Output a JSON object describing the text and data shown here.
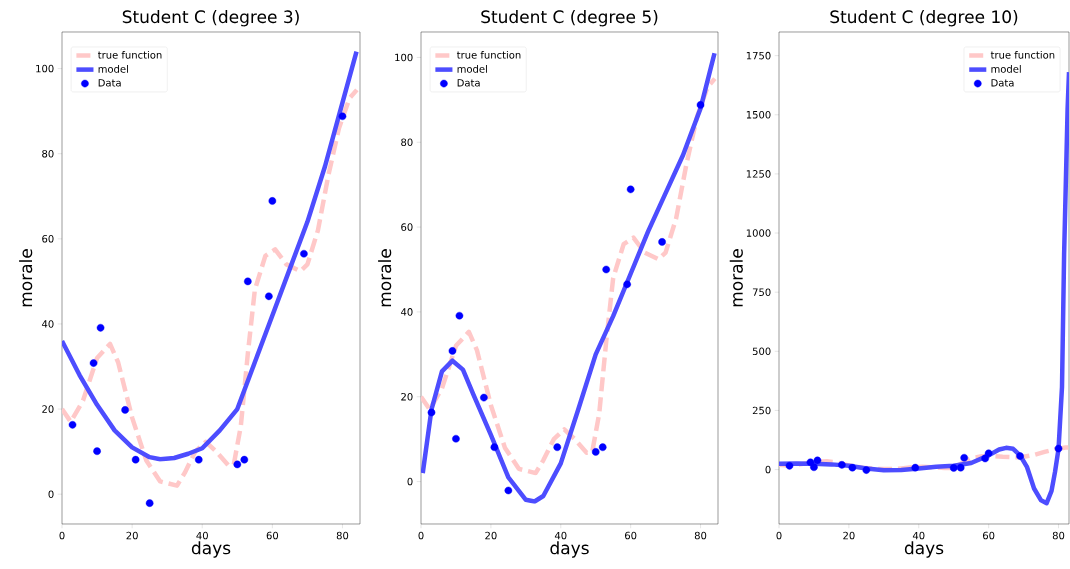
{
  "chart_data": [
    {
      "type": "line",
      "title": "Student C (degree 3)",
      "xlabel": "days",
      "ylabel": "morale",
      "xlim": [
        0,
        85
      ],
      "ylim": [
        -7,
        108.6
      ],
      "xticks": [
        0,
        20,
        40,
        60,
        80
      ],
      "yticks": [
        0,
        20,
        40,
        60,
        80,
        100
      ],
      "legend": "top left",
      "series": [
        {
          "name": "true function",
          "color": "#ffc8c8",
          "line_style": "dashed",
          "x": [
            0,
            2.5,
            6,
            10,
            13.7,
            16,
            20,
            24,
            28,
            32.8,
            35,
            38,
            41,
            44,
            47.4,
            49,
            51,
            53,
            55,
            58,
            60.8,
            64,
            68,
            70,
            73,
            76,
            79,
            82,
            84.1
          ],
          "values": [
            20,
            17,
            22,
            32,
            35.3,
            31,
            18,
            8,
            3,
            2,
            5,
            10,
            12.3,
            10,
            6.8,
            7,
            16,
            33,
            48,
            56,
            57.5,
            54,
            52.4,
            54,
            62,
            75,
            86,
            93,
            95
          ]
        },
        {
          "name": "model",
          "color": "#4d4dff",
          "line_style": "solid",
          "x": [
            0,
            5,
            10,
            15,
            20,
            25,
            28,
            32,
            36,
            40,
            45,
            50,
            55,
            60,
            65,
            70,
            75,
            80,
            84
          ],
          "values": [
            36,
            28,
            21,
            15,
            11,
            8.7,
            8.2,
            8.5,
            9.5,
            10.8,
            15,
            20,
            31,
            42,
            53,
            64,
            77,
            92,
            104
          ]
        },
        {
          "name": "Data",
          "type": "scatter",
          "color": "#0000ff",
          "marker": "circle",
          "x": [
            3,
            9,
            10,
            11,
            18,
            21,
            25,
            39,
            50,
            52,
            53,
            59,
            60,
            69,
            80
          ],
          "values": [
            16.3,
            30.8,
            10.1,
            39.1,
            19.8,
            8.1,
            -2.1,
            8.1,
            7.0,
            8.1,
            50.0,
            46.5,
            68.9,
            56.5,
            88.8
          ]
        }
      ]
    },
    {
      "type": "line",
      "title": "Student C (degree 5)",
      "xlabel": "days",
      "ylabel": "morale",
      "xlim": [
        0,
        85
      ],
      "ylim": [
        -10,
        106
      ],
      "xticks": [
        0,
        20,
        40,
        60,
        80
      ],
      "yticks": [
        0,
        20,
        40,
        60,
        80,
        100
      ],
      "legend": "top left",
      "series": [
        {
          "name": "true function",
          "color": "#ffc8c8",
          "line_style": "dashed",
          "x": [
            0,
            2.5,
            6,
            10,
            13.7,
            16,
            20,
            24,
            28,
            32.8,
            35,
            38,
            41,
            44,
            47.4,
            49,
            51,
            53,
            55,
            58,
            60.8,
            64,
            68,
            70,
            73,
            76,
            79,
            82,
            84.1
          ],
          "values": [
            20,
            17,
            22,
            32,
            35.3,
            31,
            18,
            8,
            3,
            2,
            5,
            10,
            12.3,
            10,
            6.8,
            7,
            16,
            33,
            48,
            56,
            57.5,
            54,
            52.4,
            54,
            62,
            75,
            86,
            93,
            95
          ]
        },
        {
          "name": "model",
          "color": "#4d4dff",
          "line_style": "solid",
          "x": [
            0.5,
            3,
            6,
            9,
            12,
            15,
            20,
            25,
            30,
            32.5,
            35,
            40,
            45,
            50,
            55,
            60,
            65,
            70,
            75,
            80,
            84
          ],
          "values": [
            2,
            17,
            26,
            28.5,
            26.4,
            20.5,
            11,
            1,
            -4.3,
            -4.7,
            -3.4,
            4.3,
            17,
            30,
            39,
            49,
            59,
            68,
            77,
            88,
            101
          ]
        },
        {
          "name": "Data",
          "type": "scatter",
          "color": "#0000ff",
          "marker": "circle",
          "x": [
            3,
            9,
            10,
            11,
            18,
            21,
            25,
            39,
            50,
            52,
            53,
            59,
            60,
            69,
            80
          ],
          "values": [
            16.3,
            30.8,
            10.1,
            39.1,
            19.8,
            8.1,
            -2.1,
            8.1,
            7.0,
            8.1,
            50.0,
            46.5,
            68.9,
            56.5,
            88.8
          ]
        }
      ]
    },
    {
      "type": "line",
      "title": "Student C (degree 10)",
      "xlabel": "days",
      "ylabel": "morale",
      "xlim": [
        0,
        83
      ],
      "ylim": [
        -230,
        1850
      ],
      "xticks": [
        0,
        20,
        40,
        60,
        80
      ],
      "yticks": [
        0,
        250,
        500,
        750,
        1000,
        1250,
        1500,
        1750
      ],
      "legend": "top right",
      "series": [
        {
          "name": "true function",
          "color": "#ffc8c8",
          "line_style": "dashed",
          "x": [
            0,
            2.5,
            6,
            10,
            13.7,
            16,
            20,
            24,
            28,
            32.8,
            35,
            38,
            41,
            44,
            47.4,
            49,
            51,
            53,
            55,
            58,
            60.8,
            64,
            68,
            70,
            73,
            76,
            79,
            82,
            83
          ],
          "values": [
            20,
            17,
            22,
            32,
            35,
            31,
            18,
            8,
            3,
            2,
            5,
            10,
            12,
            10,
            7,
            7,
            16,
            33,
            48,
            56,
            58,
            54,
            52,
            54,
            62,
            75,
            86,
            93,
            94
          ]
        },
        {
          "name": "model",
          "color": "#4d4dff",
          "line_style": "solid",
          "x": [
            0,
            5,
            10,
            15,
            20,
            25,
            30,
            35,
            40,
            45,
            50,
            55,
            60,
            63,
            65,
            67,
            69,
            71,
            73,
            75,
            76.6,
            78,
            79,
            80,
            81,
            81.6,
            82.6,
            83
          ],
          "values": [
            25,
            26,
            25,
            22,
            16,
            5,
            -3,
            -2,
            5,
            12,
            16,
            28,
            60,
            85,
            92,
            88,
            60,
            10,
            -80,
            -130,
            -142,
            -90,
            -10,
            87,
            350,
            910,
            1525,
            1680
          ]
        },
        {
          "name": "Data",
          "type": "scatter",
          "color": "#0000ff",
          "marker": "circle",
          "x": [
            3,
            9,
            10,
            11,
            18,
            21,
            25,
            39,
            50,
            52,
            53,
            59,
            60,
            69,
            80
          ],
          "values": [
            16,
            31,
            10,
            39,
            20,
            8,
            -2,
            8,
            7,
            8,
            50,
            47,
            69,
            57,
            89
          ]
        }
      ]
    }
  ]
}
